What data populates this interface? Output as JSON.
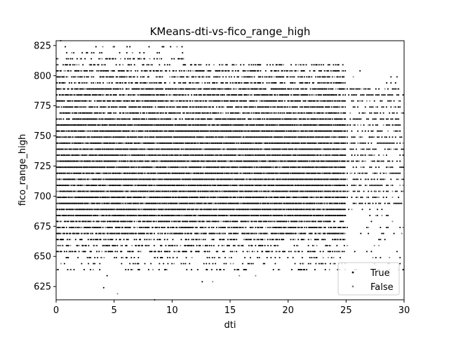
{
  "chart_data": {
    "type": "scatter",
    "title": "KMeans-dti-vs-fico_range_high",
    "xlabel": "dti",
    "ylabel": "fico_range_high",
    "xlim": [
      0,
      30
    ],
    "ylim": [
      614,
      829
    ],
    "xticks": [
      0,
      5,
      10,
      15,
      20,
      25,
      30
    ],
    "yticks": [
      625,
      650,
      675,
      700,
      725,
      750,
      775,
      800,
      825
    ],
    "grid": false,
    "legend": "lower-right",
    "fico_levels": [
      639,
      644,
      649,
      654,
      659,
      664,
      669,
      674,
      679,
      684,
      689,
      694,
      699,
      704,
      709,
      714,
      719,
      724,
      729,
      734,
      739,
      744,
      749,
      754,
      759,
      764,
      769,
      774,
      779,
      784,
      789,
      794,
      799,
      804,
      809,
      814,
      819,
      824
    ],
    "series": [
      {
        "name": "True",
        "color": "#000000",
        "sample_points": [
          [
            4.1,
            624
          ],
          [
            4.4,
            634
          ],
          [
            8.5,
            614
          ],
          [
            12.6,
            629
          ],
          [
            1.0,
            639
          ],
          [
            2.2,
            644
          ],
          [
            0.5,
            664
          ],
          [
            10.0,
            684
          ],
          [
            20.0,
            719
          ],
          [
            25.5,
            734
          ],
          [
            27.0,
            749
          ],
          [
            29.5,
            774
          ],
          [
            28.5,
            794
          ],
          [
            26.2,
            804
          ],
          [
            5.0,
            824
          ],
          [
            0.4,
            829
          ],
          [
            7.0,
            779
          ],
          [
            15.0,
            754
          ]
        ]
      },
      {
        "name": "False",
        "color": "#808080",
        "sample_points": [
          [
            5.3,
            619
          ],
          [
            13.5,
            629
          ],
          [
            15.8,
            634
          ],
          [
            17.2,
            634
          ],
          [
            1.3,
            639
          ],
          [
            26.8,
            699
          ],
          [
            27.5,
            704
          ],
          [
            29.0,
            679
          ],
          [
            26.5,
            789
          ],
          [
            29.8,
            669
          ],
          [
            12.0,
            694
          ],
          [
            18.0,
            699
          ],
          [
            8.0,
            704
          ],
          [
            22.0,
            689
          ]
        ]
      }
    ]
  }
}
